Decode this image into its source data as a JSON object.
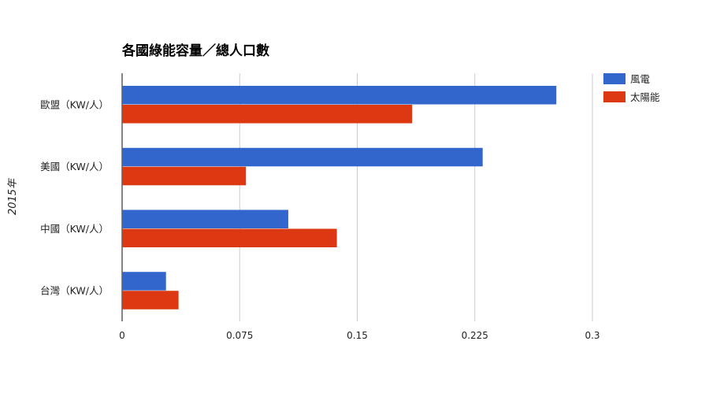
{
  "chart_data": {
    "type": "bar",
    "orientation": "horizontal",
    "title": "各國綠能容量／總人口數",
    "ylabel": "2015年",
    "xlabel": "",
    "categories": [
      "歐盟（KW/人）",
      "美國（KW/人）",
      "中國（KW/人）",
      "台灣（KW/人）"
    ],
    "series": [
      {
        "name": "風電",
        "color": "#3366cc",
        "values": [
          0.277,
          0.23,
          0.106,
          0.028
        ]
      },
      {
        "name": "太陽能",
        "color": "#dc3912",
        "values": [
          0.185,
          0.079,
          0.137,
          0.036
        ]
      }
    ],
    "xlim": [
      0,
      0.3
    ],
    "xticks": [
      "0",
      "0.075",
      "0.15",
      "0.225",
      "0.3"
    ],
    "grid": true,
    "legend": "right"
  }
}
